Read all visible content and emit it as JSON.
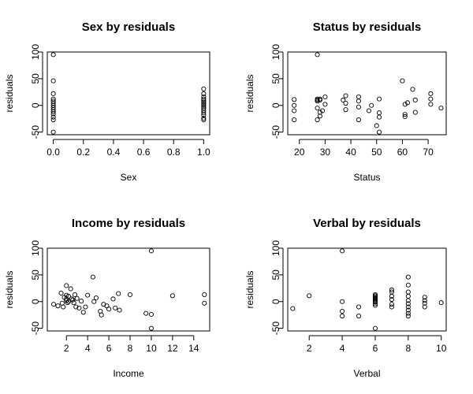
{
  "chart_data": [
    {
      "type": "scatter",
      "title": "Sex by residuals",
      "xlabel": "Sex",
      "ylabel": "residuals",
      "xlim": [
        -0.04,
        1.04
      ],
      "ylim": [
        -55,
        100
      ],
      "xticks": [
        0.0,
        0.2,
        0.4,
        0.6,
        0.8,
        1.0
      ],
      "xtick_labels": [
        "0.0",
        "0.2",
        "0.4",
        "0.6",
        "0.8",
        "1.0"
      ],
      "yticks": [
        -50,
        0,
        50,
        100
      ],
      "ytick_labels": [
        "-50",
        "0",
        "50",
        "100"
      ],
      "grid": false,
      "points": [
        [
          0,
          95
        ],
        [
          0,
          46
        ],
        [
          0,
          22
        ],
        [
          0,
          12
        ],
        [
          0,
          8
        ],
        [
          0,
          4
        ],
        [
          0,
          0
        ],
        [
          0,
          -4
        ],
        [
          0,
          -8
        ],
        [
          0,
          -12
        ],
        [
          0,
          -16
        ],
        [
          0,
          -22
        ],
        [
          0,
          -27
        ],
        [
          0,
          -50
        ],
        [
          1,
          31
        ],
        [
          1,
          22
        ],
        [
          1,
          16
        ],
        [
          1,
          12
        ],
        [
          1,
          9
        ],
        [
          1,
          6
        ],
        [
          1,
          3
        ],
        [
          1,
          0
        ],
        [
          1,
          -3
        ],
        [
          1,
          -6
        ],
        [
          1,
          -10
        ],
        [
          1,
          -14
        ],
        [
          1,
          -18
        ],
        [
          1,
          -24
        ],
        [
          1,
          -27
        ]
      ]
    },
    {
      "type": "scatter",
      "title": "Status by residuals",
      "xlabel": "Status",
      "ylabel": "residuals",
      "xlim": [
        15.5,
        77
      ],
      "ylim": [
        -55,
        100
      ],
      "xticks": [
        20,
        30,
        40,
        50,
        60,
        70
      ],
      "xtick_labels": [
        "20",
        "30",
        "40",
        "50",
        "60",
        "70"
      ],
      "yticks": [
        -50,
        0,
        50,
        100
      ],
      "ytick_labels": [
        "-50",
        "0",
        "50",
        "100"
      ],
      "grid": false,
      "points": [
        [
          18,
          11
        ],
        [
          18,
          0
        ],
        [
          18,
          -10
        ],
        [
          18,
          -27
        ],
        [
          27,
          95
        ],
        [
          27,
          12
        ],
        [
          27,
          10
        ],
        [
          27,
          8
        ],
        [
          28,
          12
        ],
        [
          28,
          10
        ],
        [
          27,
          -5
        ],
        [
          28,
          -13
        ],
        [
          28,
          -20
        ],
        [
          27,
          -27
        ],
        [
          30,
          16
        ],
        [
          30,
          2
        ],
        [
          29,
          -10
        ],
        [
          37,
          10
        ],
        [
          38,
          18
        ],
        [
          38,
          4
        ],
        [
          38,
          -8
        ],
        [
          43,
          16
        ],
        [
          43,
          8
        ],
        [
          43,
          -3
        ],
        [
          43,
          -27
        ],
        [
          47,
          -10
        ],
        [
          48,
          0
        ],
        [
          51,
          12
        ],
        [
          51,
          -14
        ],
        [
          51,
          -22
        ],
        [
          50,
          -38
        ],
        [
          51,
          -50
        ],
        [
          60,
          46
        ],
        [
          61,
          2
        ],
        [
          61,
          -17
        ],
        [
          61,
          -21
        ],
        [
          62,
          5
        ],
        [
          64,
          30
        ],
        [
          65,
          10
        ],
        [
          65,
          -13
        ],
        [
          71,
          22
        ],
        [
          71,
          12
        ],
        [
          71,
          2
        ],
        [
          75,
          -5
        ]
      ]
    },
    {
      "type": "scatter",
      "title": "Income by residuals",
      "xlabel": "Income",
      "ylabel": "residuals",
      "xlim": [
        0.2,
        15.5
      ],
      "ylim": [
        -55,
        100
      ],
      "xticks": [
        2,
        4,
        6,
        8,
        10,
        12,
        14
      ],
      "xtick_labels": [
        "2",
        "4",
        "6",
        "8",
        "10",
        "12",
        "14"
      ],
      "yticks": [
        -50,
        0,
        50,
        100
      ],
      "ytick_labels": [
        "-50",
        "0",
        "50",
        "100"
      ],
      "grid": false,
      "points": [
        [
          0.8,
          -5
        ],
        [
          1.2,
          -8
        ],
        [
          1.5,
          16
        ],
        [
          1.6,
          -3
        ],
        [
          1.7,
          -10
        ],
        [
          1.8,
          8
        ],
        [
          2.0,
          30
        ],
        [
          2.0,
          12
        ],
        [
          2.0,
          5
        ],
        [
          2.0,
          2
        ],
        [
          2.1,
          -2
        ],
        [
          2.2,
          10
        ],
        [
          2.2,
          0
        ],
        [
          2.4,
          24
        ],
        [
          2.5,
          5
        ],
        [
          2.6,
          3
        ],
        [
          2.7,
          -2
        ],
        [
          2.8,
          13
        ],
        [
          2.9,
          -10
        ],
        [
          3.0,
          6
        ],
        [
          3.2,
          -12
        ],
        [
          3.4,
          1
        ],
        [
          3.6,
          -20
        ],
        [
          3.8,
          -10
        ],
        [
          4.0,
          12
        ],
        [
          4.5,
          46
        ],
        [
          4.6,
          0
        ],
        [
          4.8,
          7
        ],
        [
          5.2,
          -18
        ],
        [
          5.3,
          -25
        ],
        [
          5.5,
          -5
        ],
        [
          5.8,
          -8
        ],
        [
          6.0,
          -14
        ],
        [
          6.4,
          5
        ],
        [
          6.6,
          -12
        ],
        [
          6.9,
          15
        ],
        [
          7.0,
          -16
        ],
        [
          8.0,
          13
        ],
        [
          9.5,
          -22
        ],
        [
          10.0,
          95
        ],
        [
          10.0,
          -24
        ],
        [
          10.0,
          -50
        ],
        [
          12.0,
          11
        ],
        [
          15.0,
          13
        ],
        [
          15.0,
          -3
        ]
      ]
    },
    {
      "type": "scatter",
      "title": "Verbal by residuals",
      "xlabel": "Verbal",
      "ylabel": "residuals",
      "xlim": [
        0.7,
        10.3
      ],
      "ylim": [
        -55,
        100
      ],
      "xticks": [
        2,
        4,
        6,
        8,
        10
      ],
      "xtick_labels": [
        "2",
        "4",
        "6",
        "8",
        "10"
      ],
      "yticks": [
        -50,
        0,
        50,
        100
      ],
      "ytick_labels": [
        "-50",
        "0",
        "50",
        "100"
      ],
      "grid": false,
      "points": [
        [
          1,
          -13
        ],
        [
          2,
          11
        ],
        [
          4,
          95
        ],
        [
          4,
          0
        ],
        [
          4,
          -18
        ],
        [
          4,
          -27
        ],
        [
          5,
          -10
        ],
        [
          5,
          -27
        ],
        [
          6,
          13
        ],
        [
          6,
          11
        ],
        [
          6,
          9
        ],
        [
          6,
          7
        ],
        [
          6,
          5
        ],
        [
          6,
          3
        ],
        [
          6,
          1
        ],
        [
          6,
          -1
        ],
        [
          6,
          -4
        ],
        [
          6,
          -7
        ],
        [
          6,
          -50
        ],
        [
          7,
          22
        ],
        [
          7,
          18
        ],
        [
          7,
          10
        ],
        [
          7,
          4
        ],
        [
          7,
          -5
        ],
        [
          7,
          -10
        ],
        [
          8,
          46
        ],
        [
          8,
          31
        ],
        [
          8,
          18
        ],
        [
          8,
          10
        ],
        [
          8,
          2
        ],
        [
          8,
          -4
        ],
        [
          8,
          -10
        ],
        [
          8,
          -16
        ],
        [
          8,
          -22
        ],
        [
          8,
          -27
        ],
        [
          9,
          8
        ],
        [
          9,
          2
        ],
        [
          9,
          -3
        ],
        [
          9,
          -10
        ],
        [
          10,
          -2
        ]
      ]
    }
  ]
}
